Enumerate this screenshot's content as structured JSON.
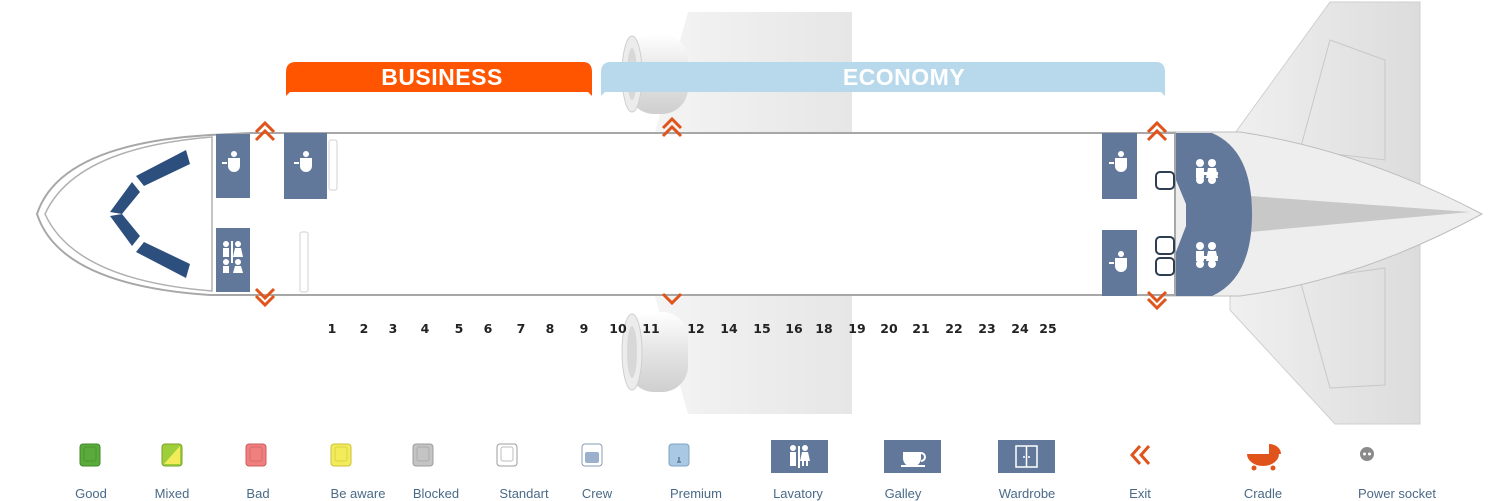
{
  "cabin": {
    "business_label": "BUSINESS",
    "economy_label": "ECONOMY",
    "business_color": "#ff5500",
    "economy_color": "#b8d8ec",
    "facility_color": "#62789a",
    "exit_color": "#e0541c"
  },
  "rows": [
    "1",
    "2",
    "3",
    "4",
    "5",
    "6",
    "7",
    "8",
    "9",
    "10",
    "11",
    "12",
    "14",
    "15",
    "16",
    "18",
    "19",
    "20",
    "21",
    "22",
    "23",
    "24",
    "25"
  ],
  "legend": [
    {
      "key": "good",
      "label": "Good",
      "icon": "seat-good-icon",
      "color": "#5aaa3c"
    },
    {
      "key": "mixed",
      "label": "Mixed",
      "icon": "seat-mixed-icon",
      "color": "#9ecf3a"
    },
    {
      "key": "bad",
      "label": "Bad",
      "icon": "seat-bad-icon",
      "color": "#f08080"
    },
    {
      "key": "be-aware",
      "label": "Be aware",
      "icon": "seat-be-aware-icon",
      "color": "#f2ec5a"
    },
    {
      "key": "blocked",
      "label": "Blocked",
      "icon": "seat-blocked-icon",
      "color": "#c4c4c4"
    },
    {
      "key": "standart",
      "label": "Standart",
      "icon": "seat-standart-icon",
      "color": "#ffffff"
    },
    {
      "key": "crew",
      "label": "Crew",
      "icon": "seat-crew-icon",
      "color": "#9ab0cc"
    },
    {
      "key": "premium",
      "label": "Premium",
      "icon": "seat-premium-icon",
      "color": "#a8c8e4"
    },
    {
      "key": "lavatory",
      "label": "Lavatory",
      "icon": "lavatory-icon",
      "color": "#62789a"
    },
    {
      "key": "galley",
      "label": "Galley",
      "icon": "galley-icon",
      "color": "#62789a"
    },
    {
      "key": "wardrobe",
      "label": "Wardrobe",
      "icon": "wardrobe-icon",
      "color": "#62789a"
    },
    {
      "key": "exit",
      "label": "Exit",
      "icon": "exit-icon",
      "color": "#e0541c"
    },
    {
      "key": "cradle",
      "label": "Cradle",
      "icon": "cradle-icon",
      "color": "#e0541c"
    },
    {
      "key": "power-socket",
      "label": "Power socket",
      "icon": "power-socket-icon",
      "color": "#888888"
    }
  ]
}
